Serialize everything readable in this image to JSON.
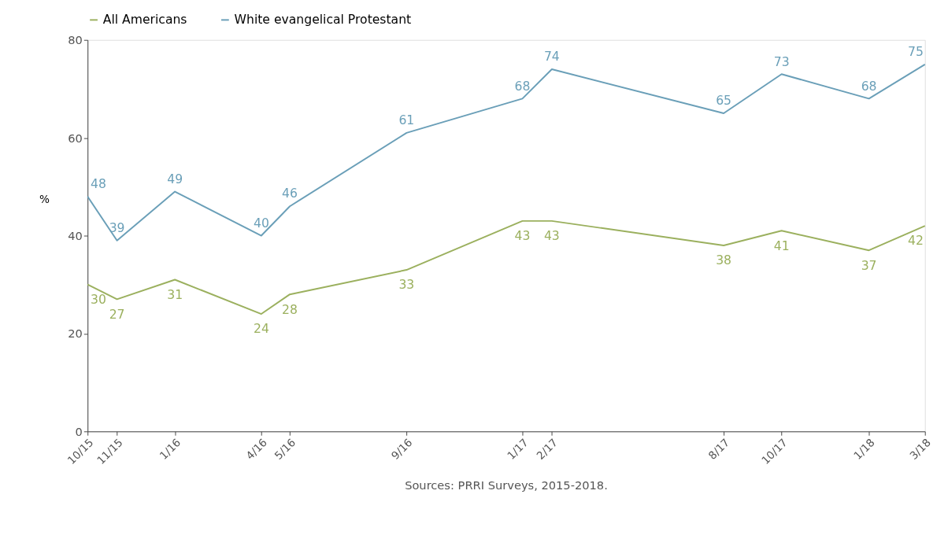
{
  "chart_data": {
    "type": "line",
    "x": [
      "2015-10",
      "2015-11",
      "2016-01",
      "2016-04",
      "2016-05",
      "2016-09",
      "2017-01",
      "2017-02",
      "2017-08",
      "2017-10",
      "2018-01",
      "2018-03"
    ],
    "series": [
      {
        "name": "All Americans",
        "color": "#9bb05e",
        "values": [
          30,
          27,
          31,
          24,
          28,
          33,
          43,
          43,
          38,
          41,
          37,
          42
        ]
      },
      {
        "name": "White evangelical Protestant",
        "color": "#6a9fb8",
        "values": [
          48,
          39,
          49,
          40,
          46,
          61,
          68,
          74,
          65,
          73,
          68,
          75
        ]
      }
    ],
    "ylabel": "%",
    "ylim": [
      0,
      80
    ],
    "yticks": [
      0,
      20,
      40,
      60,
      80
    ],
    "xlim": [
      "2015-10",
      "2018-03"
    ],
    "xticks": [
      {
        "value": "2015-10",
        "label": "10/15"
      },
      {
        "value": "2015-11",
        "label": "11/15"
      },
      {
        "value": "2016-01",
        "label": "1/16"
      },
      {
        "value": "2016-04",
        "label": "4/16"
      },
      {
        "value": "2016-05",
        "label": "5/16"
      },
      {
        "value": "2016-09",
        "label": "9/16"
      },
      {
        "value": "2017-01",
        "label": "1/17"
      },
      {
        "value": "2017-02",
        "label": "2/17"
      },
      {
        "value": "2017-08",
        "label": "8/17"
      },
      {
        "value": "2017-10",
        "label": "10/17"
      },
      {
        "value": "2018-01",
        "label": "1/18"
      },
      {
        "value": "2018-03",
        "label": "3/18"
      }
    ],
    "grid": false,
    "legend": "top",
    "data_labels": true,
    "marker": "none",
    "line_style": "solid",
    "annotations": [
      "Sources: PRRI Surveys, 2015-2018."
    ]
  }
}
